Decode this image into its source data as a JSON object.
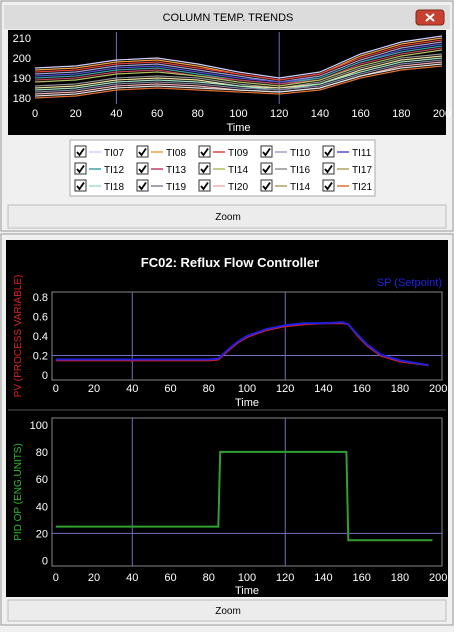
{
  "top_window": {
    "title": "COLUMN TEMP. TRENDS",
    "zoom": "Zoom"
  },
  "bottom_window": {
    "title": "FC02: Reflux Flow Controller",
    "zoom": "Zoom"
  },
  "chart_data": [
    {
      "type": "line",
      "x_label": "Time",
      "x": [
        0,
        20,
        40,
        60,
        80,
        100,
        120,
        140,
        160,
        180,
        200
      ],
      "xlim": [
        0,
        200
      ],
      "xticks": [
        0,
        20,
        40,
        60,
        80,
        100,
        120,
        140,
        160,
        180,
        200
      ],
      "ylim": [
        177,
        213
      ],
      "yticks": [
        180,
        190,
        200,
        210
      ],
      "cursor_x": [
        40,
        120
      ],
      "series": [
        {
          "name": "TI07",
          "color": "#d0d0ff",
          "values": [
            195,
            196,
            199,
            200,
            197,
            193,
            190,
            193,
            202,
            208,
            211
          ]
        },
        {
          "name": "TI08",
          "color": "#f0a040",
          "values": [
            194,
            195,
            198,
            199,
            196,
            192,
            189,
            192,
            201,
            207,
            210
          ]
        },
        {
          "name": "TI09",
          "color": "#e04040",
          "values": [
            193,
            194,
            197,
            198,
            195,
            192,
            189,
            192,
            200,
            206,
            209
          ]
        },
        {
          "name": "TI10",
          "color": "#a0a0c8",
          "values": [
            192,
            193,
            196,
            197,
            194,
            191,
            188,
            191,
            199,
            205,
            208
          ]
        },
        {
          "name": "TI11",
          "color": "#5050d0",
          "values": [
            191,
            192,
            195,
            196,
            193,
            190,
            188,
            190,
            198,
            204,
            207
          ]
        },
        {
          "name": "TI12",
          "color": "#40a0a0",
          "values": [
            190,
            191,
            194,
            195,
            192,
            189,
            187,
            190,
            198,
            203,
            206
          ]
        },
        {
          "name": "TI13",
          "color": "#c04060",
          "values": [
            189,
            190,
            193,
            194,
            191,
            189,
            187,
            189,
            197,
            202,
            205
          ]
        },
        {
          "name": "TI14",
          "color": "#b0c060",
          "values": [
            188,
            189,
            192,
            193,
            191,
            188,
            186,
            189,
            196,
            201,
            204
          ]
        },
        {
          "name": "TI16",
          "color": "#909090",
          "values": [
            186,
            187,
            190,
            191,
            190,
            187,
            185,
            188,
            195,
            200,
            202
          ]
        },
        {
          "name": "TI17",
          "color": "#f0e0a0",
          "values": [
            185,
            186,
            189,
            190,
            189,
            186,
            185,
            187,
            194,
            199,
            201
          ]
        },
        {
          "name": "TI18",
          "color": "#a0e0c0",
          "values": [
            184,
            185,
            188,
            189,
            188,
            186,
            184,
            187,
            193,
            198,
            200
          ]
        },
        {
          "name": "TI19",
          "color": "#8080a0",
          "values": [
            183,
            184,
            187,
            188,
            187,
            185,
            184,
            186,
            192,
            197,
            199
          ]
        },
        {
          "name": "TI20",
          "color": "#f0b0b0",
          "values": [
            182,
            183,
            186,
            187,
            186,
            184,
            183,
            185,
            191,
            196,
            198
          ]
        },
        {
          "name": "TI14",
          "color": "#e0e0e0",
          "values": [
            181,
            182,
            185,
            186,
            185,
            184,
            183,
            185,
            191,
            195,
            197
          ]
        },
        {
          "name": "TI21",
          "color": "#e07030",
          "values": [
            180,
            181,
            184,
            185,
            184,
            183,
            182,
            184,
            190,
            194,
            196
          ]
        }
      ]
    },
    {
      "type": "line",
      "x_label": "Time",
      "y_label": "PV (PROCESS VARIABLE)",
      "y_label_color": "#e02020",
      "x": [
        0,
        20,
        40,
        60,
        80,
        85,
        90,
        95,
        100,
        110,
        120,
        130,
        140,
        150,
        153,
        158,
        163,
        170,
        180,
        195
      ],
      "xlim": [
        -2,
        202
      ],
      "xticks": [
        0,
        20,
        40,
        60,
        80,
        100,
        120,
        140,
        160,
        180,
        200
      ],
      "ylim": [
        -0.05,
        0.85
      ],
      "yticks": [
        0,
        0.2,
        0.4,
        0.6,
        0.8
      ],
      "cursor_x": [
        40,
        120
      ],
      "hline": 0.2,
      "series": [
        {
          "color": "#e02020",
          "values": [
            0.15,
            0.15,
            0.15,
            0.15,
            0.15,
            0.16,
            0.25,
            0.33,
            0.39,
            0.46,
            0.5,
            0.52,
            0.53,
            0.53,
            0.52,
            0.4,
            0.3,
            0.2,
            0.14,
            0.1
          ]
        },
        {
          "name": "SP (Setpoint)",
          "color": "#2020e0",
          "values": [
            0.16,
            0.16,
            0.16,
            0.16,
            0.16,
            0.17,
            0.26,
            0.34,
            0.4,
            0.47,
            0.51,
            0.53,
            0.53,
            0.54,
            0.52,
            0.41,
            0.31,
            0.21,
            0.15,
            0.1
          ]
        }
      ]
    },
    {
      "type": "line",
      "x_label": "Time",
      "y_label": "PID OP (ENG.UNITS)",
      "y_label_color": "#30c030",
      "x": [
        0,
        85,
        86,
        152,
        153,
        197
      ],
      "xlim": [
        -2,
        202
      ],
      "xticks": [
        0,
        20,
        40,
        60,
        80,
        100,
        120,
        140,
        160,
        180,
        200
      ],
      "ylim": [
        -4,
        105
      ],
      "yticks": [
        0,
        20,
        40,
        60,
        80,
        100
      ],
      "cursor_x": [
        40,
        120
      ],
      "hline": 20,
      "series": [
        {
          "color": "#30a030",
          "values": [
            25,
            25,
            80,
            80,
            15,
            15
          ]
        }
      ]
    }
  ]
}
